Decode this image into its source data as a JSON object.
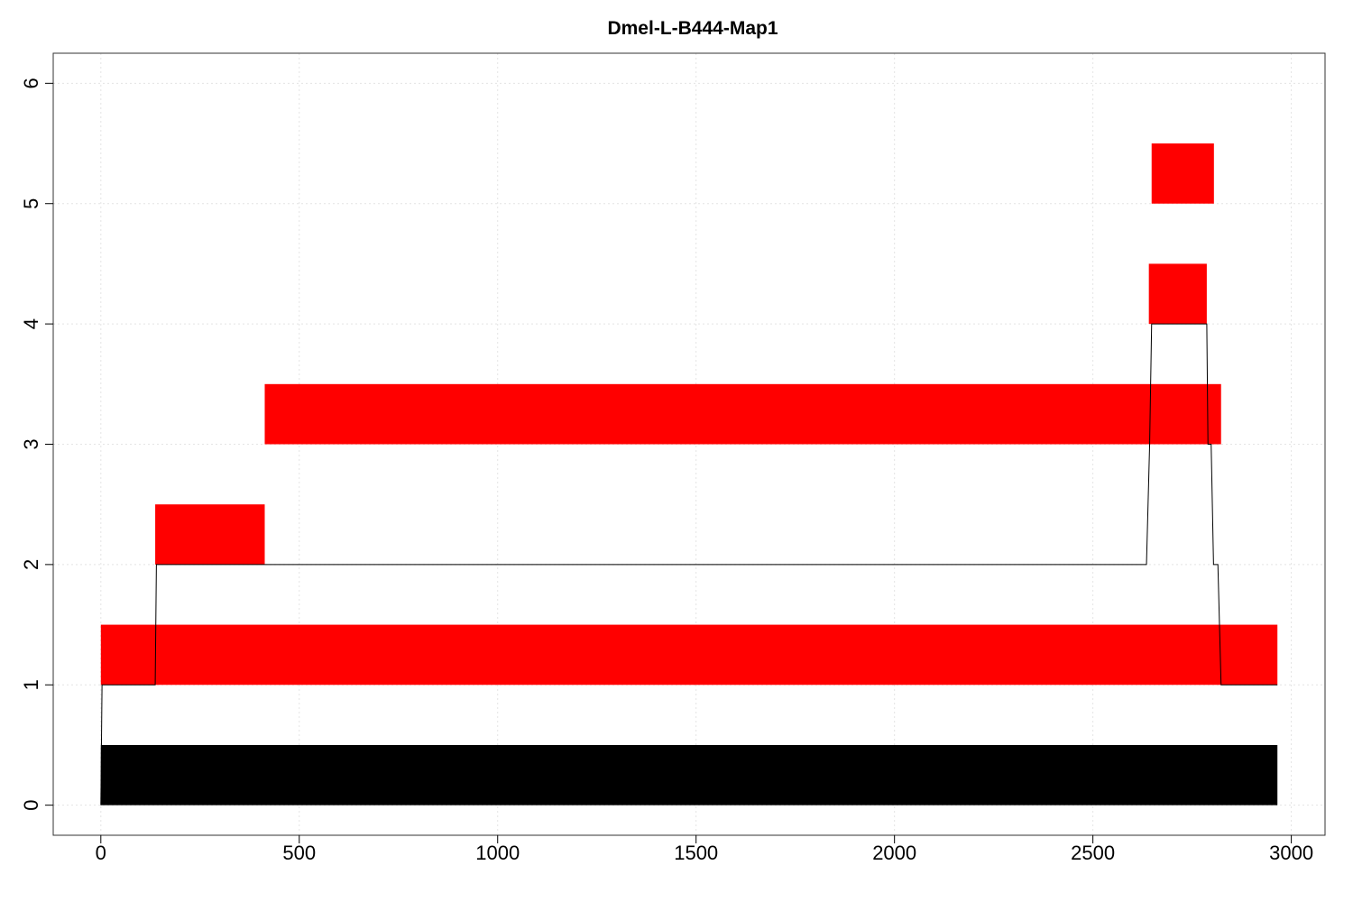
{
  "chart_data": {
    "type": "bar",
    "title": "Dmel-L-B444-Map1",
    "xlabel": "",
    "ylabel": "",
    "xlim": [
      -120,
      3085
    ],
    "ylim": [
      -0.25,
      6.25
    ],
    "x_ticks": [
      0,
      500,
      1000,
      1500,
      2000,
      2500,
      3000
    ],
    "y_ticks": [
      0,
      1,
      2,
      3,
      4,
      5,
      6
    ],
    "grid": true,
    "segments": [
      {
        "x0": 0,
        "x1": 2965,
        "y0": 0,
        "y1": 0.5,
        "color": "#000000"
      },
      {
        "x0": 0,
        "x1": 2965,
        "y0": 1,
        "y1": 1.5,
        "color": "#ff0000"
      },
      {
        "x0": 137,
        "x1": 413,
        "y0": 2,
        "y1": 2.5,
        "color": "#ff0000"
      },
      {
        "x0": 413,
        "x1": 2823,
        "y0": 3,
        "y1": 3.5,
        "color": "#ff0000"
      },
      {
        "x0": 2641,
        "x1": 2787,
        "y0": 4,
        "y1": 4.5,
        "color": "#ff0000"
      },
      {
        "x0": 2648,
        "x1": 2805,
        "y0": 5,
        "y1": 5.5,
        "color": "#ff0000"
      }
    ],
    "coverage_line": {
      "x": [
        0,
        3,
        137,
        140,
        410,
        418,
        2635,
        2643,
        2648,
        2787,
        2790,
        2798,
        2804,
        2815,
        2823,
        2828,
        2965
      ],
      "y": [
        0,
        1,
        1,
        2,
        2,
        2,
        2,
        3,
        4,
        4,
        3,
        3,
        2,
        2,
        1,
        1,
        1
      ],
      "color": "#000000"
    }
  }
}
